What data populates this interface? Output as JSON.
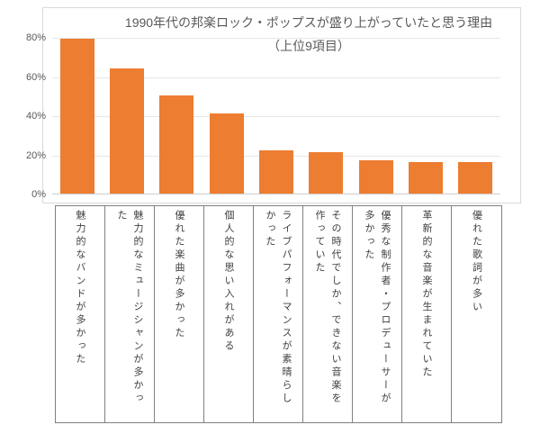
{
  "chart_data": {
    "type": "bar",
    "title": "1990年代の邦楽ロック・ポップスが盛り上がっていたと思う理由",
    "subtitle": "（上位9項目）",
    "categories": [
      "魅力的なバンドが多かった",
      "魅力的なミュージシャンが多かった",
      "優れた楽曲が多かった",
      "個人的な思い入れがある",
      "ライブパフォーマンスが素晴らしかった",
      "その時代でしか、できない音楽を作っていた",
      "優秀な制作者・プロデューサーが多かった",
      "革新的な音楽が生まれていた",
      "優れた歌詞が多い"
    ],
    "values": [
      79,
      64,
      50,
      41,
      22,
      21,
      17,
      16,
      16
    ],
    "unit": "%",
    "xlabel": "",
    "ylabel": "",
    "ylim": [
      0,
      80
    ],
    "yticks": [
      0,
      20,
      40,
      60,
      80
    ],
    "ytick_labels": [
      "0%",
      "20%",
      "40%",
      "60%",
      "80%"
    ],
    "grid": true,
    "legend_position": "none"
  },
  "style": {
    "bar_color": "#ED7D31",
    "title_color": "#595959",
    "axis_label_color": "#595959",
    "grid_color": "#E7E7E7",
    "axis_line_color": "#CFCFCF",
    "chart_border_color": "#D9D9D9",
    "table_border_color": "#808080",
    "table_text_color": "#404040"
  }
}
